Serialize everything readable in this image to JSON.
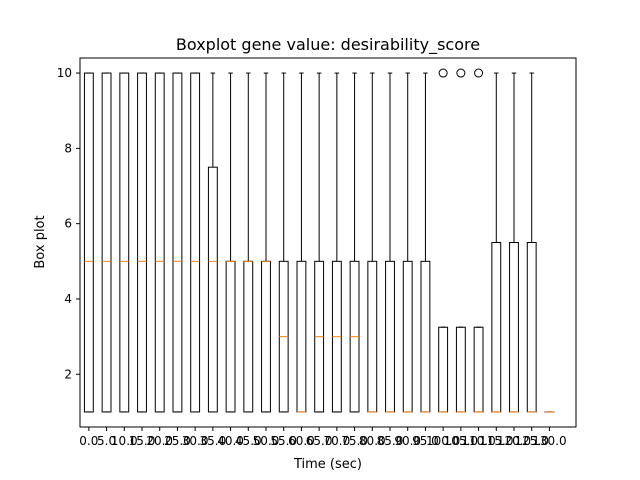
{
  "chart_data": {
    "type": "boxplot",
    "title": "Boxplot gene value: desirability_score",
    "xlabel": "Time (sec)",
    "ylabel": "Box plot",
    "ylim": [
      0.6,
      10.4
    ],
    "yticks": [
      2,
      4,
      6,
      8,
      10
    ],
    "grid": false,
    "legend": "none",
    "colors": {
      "box": "#000000",
      "median": "#ff7f0e",
      "background": "#ffffff"
    },
    "boxes": [
      {
        "label": "0.0",
        "whislo": 1,
        "q1": 1,
        "med": 5,
        "q3": 10,
        "whishi": 10,
        "fliers": []
      },
      {
        "label": "5.0",
        "whislo": 1,
        "q1": 1,
        "med": 5,
        "q3": 10,
        "whishi": 10,
        "fliers": []
      },
      {
        "label": "10.0",
        "whislo": 1,
        "q1": 1,
        "med": 5,
        "q3": 10,
        "whishi": 10,
        "fliers": []
      },
      {
        "label": "15.0",
        "whislo": 1,
        "q1": 1,
        "med": 5,
        "q3": 10,
        "whishi": 10,
        "fliers": []
      },
      {
        "label": "20.0",
        "whislo": 1,
        "q1": 1,
        "med": 5,
        "q3": 10,
        "whishi": 10,
        "fliers": []
      },
      {
        "label": "25.0",
        "whislo": 1,
        "q1": 1,
        "med": 5,
        "q3": 10,
        "whishi": 10,
        "fliers": []
      },
      {
        "label": "30.0",
        "whislo": 1,
        "q1": 1,
        "med": 5,
        "q3": 10,
        "whishi": 10,
        "fliers": []
      },
      {
        "label": "35.0",
        "whislo": 1,
        "q1": 1,
        "med": 5,
        "q3": 7.5,
        "whishi": 10,
        "fliers": []
      },
      {
        "label": "40.0",
        "whislo": 1,
        "q1": 1,
        "med": 5,
        "q3": 5,
        "whishi": 10,
        "fliers": []
      },
      {
        "label": "45.0",
        "whislo": 1,
        "q1": 1,
        "med": 5,
        "q3": 5,
        "whishi": 10,
        "fliers": []
      },
      {
        "label": "50.0",
        "whislo": 1,
        "q1": 1,
        "med": 5,
        "q3": 5,
        "whishi": 10,
        "fliers": []
      },
      {
        "label": "55.0",
        "whislo": 1,
        "q1": 1,
        "med": 3,
        "q3": 5,
        "whishi": 10,
        "fliers": []
      },
      {
        "label": "60.0",
        "whislo": 1,
        "q1": 1,
        "med": 1,
        "q3": 5,
        "whishi": 10,
        "fliers": []
      },
      {
        "label": "65.0",
        "whislo": 1,
        "q1": 1,
        "med": 3,
        "q3": 5,
        "whishi": 10,
        "fliers": []
      },
      {
        "label": "70.0",
        "whislo": 1,
        "q1": 1,
        "med": 3,
        "q3": 5,
        "whishi": 10,
        "fliers": []
      },
      {
        "label": "75.0",
        "whislo": 1,
        "q1": 1,
        "med": 3,
        "q3": 5,
        "whishi": 10,
        "fliers": []
      },
      {
        "label": "80.0",
        "whislo": 1,
        "q1": 1,
        "med": 1,
        "q3": 5,
        "whishi": 10,
        "fliers": []
      },
      {
        "label": "85.0",
        "whislo": 1,
        "q1": 1,
        "med": 1,
        "q3": 5,
        "whishi": 10,
        "fliers": []
      },
      {
        "label": "90.0",
        "whislo": 1,
        "q1": 1,
        "med": 1,
        "q3": 5,
        "whishi": 10,
        "fliers": []
      },
      {
        "label": "95.0",
        "whislo": 1,
        "q1": 1,
        "med": 1,
        "q3": 5,
        "whishi": 10,
        "fliers": []
      },
      {
        "label": "100.0",
        "whislo": 1,
        "q1": 1,
        "med": 1,
        "q3": 3.25,
        "whishi": 3.25,
        "fliers": [
          10
        ]
      },
      {
        "label": "105.0",
        "whislo": 1,
        "q1": 1,
        "med": 1,
        "q3": 3.25,
        "whishi": 3.25,
        "fliers": [
          10
        ]
      },
      {
        "label": "110.0",
        "whislo": 1,
        "q1": 1,
        "med": 1,
        "q3": 3.25,
        "whishi": 3.25,
        "fliers": [
          10
        ]
      },
      {
        "label": "115.0",
        "whislo": 1,
        "q1": 1,
        "med": 1,
        "q3": 5.5,
        "whishi": 10,
        "fliers": []
      },
      {
        "label": "120.0",
        "whislo": 1,
        "q1": 1,
        "med": 1,
        "q3": 5.5,
        "whishi": 10,
        "fliers": []
      },
      {
        "label": "125.0",
        "whislo": 1,
        "q1": 1,
        "med": 1,
        "q3": 5.5,
        "whishi": 10,
        "fliers": []
      },
      {
        "label": "130.0",
        "whislo": 1,
        "q1": 1,
        "med": 1,
        "q3": 1,
        "whishi": 1,
        "fliers": []
      }
    ]
  }
}
